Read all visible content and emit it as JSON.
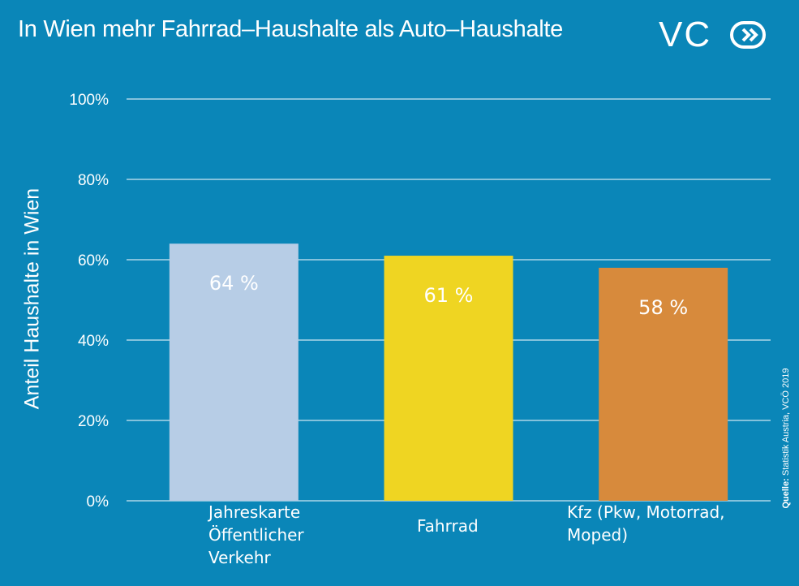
{
  "title": "In Wien mehr Fahrrad–Haushalte als Auto–Haushalte",
  "logo": {
    "text": "VC",
    "icon": "double-chevron-circle-icon"
  },
  "source": {
    "prefix": "Quelle:",
    "text": " Statistik Austria, VCÖ 2019"
  },
  "colors": {
    "background": "#0a86b8",
    "grid": "#ffffff",
    "bars": [
      "#b7cde6",
      "#efd522",
      "#d78a3c"
    ]
  },
  "chart_data": {
    "type": "bar",
    "title": "In Wien mehr Fahrrad–Haushalte als Auto–Haushalte",
    "xlabel": "",
    "ylabel": "Anteil Haushalte in Wien",
    "categories": [
      "Jahreskarte Öffentlicher Verkehr",
      "Fahrrad",
      "Kfz (Pkw, Motorrad, Moped)"
    ],
    "category_lines": [
      [
        "Jahreskarte",
        "Öffentlicher",
        "Verkehr"
      ],
      [
        "Fahrrad"
      ],
      [
        "Kfz (Pkw, Motorrad,",
        "Moped)"
      ]
    ],
    "values": [
      64,
      61,
      58
    ],
    "value_labels": [
      "64 %",
      "61 %",
      "58 %"
    ],
    "ylim": [
      0,
      100
    ],
    "yticks": [
      0,
      20,
      40,
      60,
      80,
      100
    ],
    "ytick_labels": [
      "0%",
      "20%",
      "40%",
      "60%",
      "80%",
      "100%"
    ],
    "grid": true,
    "legend": "none"
  }
}
